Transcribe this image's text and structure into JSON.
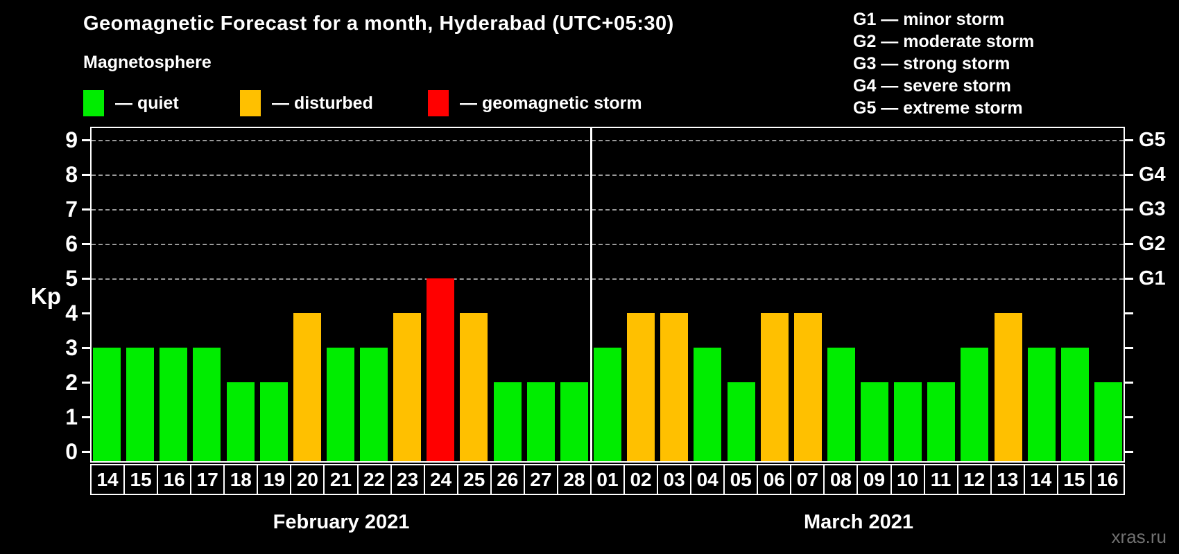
{
  "header": {
    "title": "Geomagnetic Forecast for a month, Hyderabad (UTC+05:30)",
    "subtitle": "Magnetosphere",
    "legend": [
      {
        "name": "quiet",
        "label": "— quiet",
        "color": "#00ed00"
      },
      {
        "name": "disturbed",
        "label": "— disturbed",
        "color": "#ffc000"
      },
      {
        "name": "storm",
        "label": "— geomagnetic storm",
        "color": "#ff0000"
      }
    ],
    "g_legend": [
      "G1 — minor storm",
      "G2 — moderate storm",
      "G3 — strong storm",
      "G4 — severe storm",
      "G5 — extreme storm"
    ]
  },
  "chart_data": {
    "type": "bar",
    "ylabel": "Kp",
    "ylim": [
      0,
      9
    ],
    "yticks": [
      0,
      1,
      2,
      3,
      4,
      5,
      6,
      7,
      8,
      9
    ],
    "gridlines_at": [
      5,
      6,
      7,
      8,
      9
    ],
    "right_axis_labels": [
      {
        "kp": 5,
        "label": "G1"
      },
      {
        "kp": 6,
        "label": "G2"
      },
      {
        "kp": 7,
        "label": "G3"
      },
      {
        "kp": 8,
        "label": "G4"
      },
      {
        "kp": 9,
        "label": "G5"
      }
    ],
    "color_map": {
      "quiet": "#00ed00",
      "disturbed": "#ffc000",
      "storm": "#ff0000"
    },
    "months": [
      {
        "label": "February 2021",
        "days": [
          "14",
          "15",
          "16",
          "17",
          "18",
          "19",
          "20",
          "21",
          "22",
          "23",
          "24",
          "25",
          "26",
          "27",
          "28"
        ],
        "values": [
          3,
          3,
          3,
          3,
          2,
          2,
          4,
          3,
          3,
          4,
          5,
          4,
          2,
          2,
          2
        ],
        "status": [
          "quiet",
          "quiet",
          "quiet",
          "quiet",
          "quiet",
          "quiet",
          "disturbed",
          "quiet",
          "quiet",
          "disturbed",
          "storm",
          "disturbed",
          "quiet",
          "quiet",
          "quiet"
        ]
      },
      {
        "label": "March 2021",
        "days": [
          "01",
          "02",
          "03",
          "04",
          "05",
          "06",
          "07",
          "08",
          "09",
          "10",
          "11",
          "12",
          "13",
          "14",
          "15",
          "16"
        ],
        "values": [
          3,
          4,
          4,
          3,
          2,
          4,
          4,
          3,
          2,
          2,
          2,
          3,
          4,
          3,
          3,
          2
        ],
        "status": [
          "quiet",
          "disturbed",
          "disturbed",
          "quiet",
          "quiet",
          "disturbed",
          "disturbed",
          "quiet",
          "quiet",
          "quiet",
          "quiet",
          "quiet",
          "disturbed",
          "quiet",
          "quiet",
          "quiet"
        ]
      }
    ]
  },
  "watermark": "xras.ru"
}
